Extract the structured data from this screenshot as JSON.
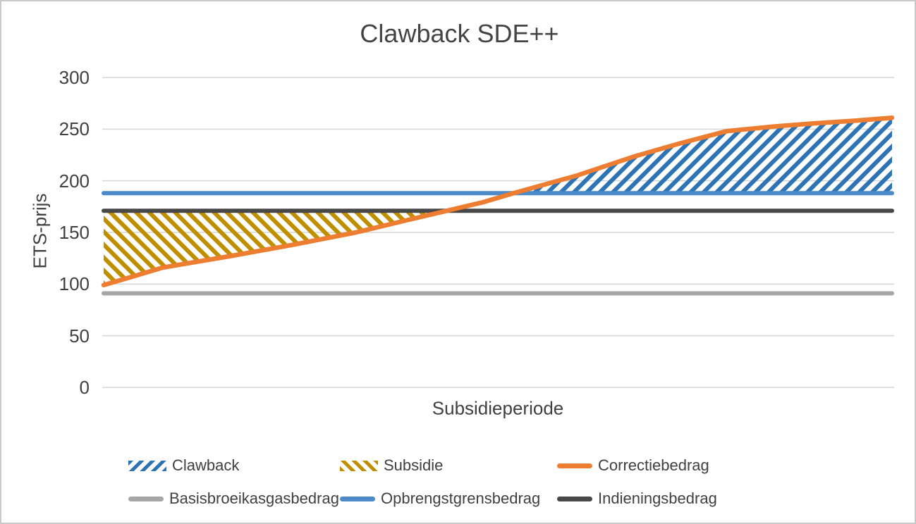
{
  "chart_data": {
    "type": "line",
    "title": "Clawback SDE++",
    "xlabel": "Subsidieperiode",
    "ylabel": "ETS-prijs",
    "ylim": [
      0,
      300
    ],
    "yticks": [
      300,
      250,
      200,
      150,
      100,
      50,
      0
    ],
    "grid": true,
    "x_axis_note": "category axis without tick labels, span = one subsidy period (t from 0 to 1)",
    "series": [
      {
        "name": "Correctiebedrag",
        "kind": "line",
        "color": "#ED7D31",
        "points": [
          [
            0,
            99
          ],
          [
            0.04,
            108
          ],
          [
            0.075,
            116
          ],
          [
            0.16,
            127
          ],
          [
            0.24,
            138
          ],
          [
            0.32,
            150
          ],
          [
            0.38,
            161
          ],
          [
            0.43,
            170
          ],
          [
            0.48,
            179
          ],
          [
            0.52,
            188
          ],
          [
            0.6,
            205
          ],
          [
            0.675,
            224
          ],
          [
            0.73,
            236
          ],
          [
            0.79,
            248
          ],
          [
            0.85,
            252.5
          ],
          [
            0.9,
            255.5
          ],
          [
            0.95,
            258
          ],
          [
            1,
            261
          ]
        ]
      },
      {
        "name": "Opbrengstgrensbedrag",
        "kind": "hline",
        "color": "#4D8AC9",
        "value": 188
      },
      {
        "name": "Indieningsbedrag",
        "kind": "hline",
        "color": "#484848",
        "value": 171
      },
      {
        "name": "Basisbroeikasgasbedrag",
        "kind": "hline",
        "color": "#A6A6A6",
        "value": 91
      },
      {
        "name": "Clawback",
        "kind": "hatch-area",
        "color": "#2E74B5",
        "hatch": "/",
        "description": "area where Correctiebedrag exceeds Opbrengstgrensbedrag (above 188)",
        "upper": "Correctiebedrag",
        "lower_value": 188
      },
      {
        "name": "Subsidie",
        "kind": "hatch-area",
        "color": "#BF8F00",
        "hatch": "\\",
        "description": "area where Correctiebedrag is below Indieningsbedrag (under 171)",
        "upper_value": 171,
        "lower": "Correctiebedrag"
      }
    ],
    "legend": {
      "position": "bottom",
      "rows": [
        [
          {
            "label": "Clawback",
            "swatch": "hatch-blue"
          },
          {
            "label": "Subsidie",
            "swatch": "hatch-gold"
          },
          {
            "label": "Correctiebedrag",
            "swatch": "line-orange"
          }
        ],
        [
          {
            "label": "Basisbroeikasgasbedrag",
            "swatch": "line-gray"
          },
          {
            "label": "Opbrengstgrensbedrag",
            "swatch": "line-blue"
          },
          {
            "label": "Indieningsbedrag",
            "swatch": "line-dark"
          }
        ]
      ]
    },
    "colors": {
      "orange": "#ED7D31",
      "blue_line": "#4D8AC9",
      "blue_hatch": "#2E74B5",
      "gold_hatch": "#BF8F00",
      "gray_line": "#A6A6A6",
      "dark_line": "#484848",
      "gridline": "#D6D6D6",
      "text": "#404040"
    }
  }
}
